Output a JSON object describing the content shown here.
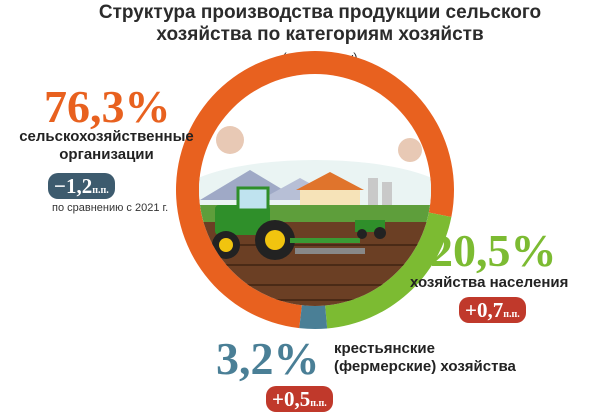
{
  "chart_data": {
    "type": "pie",
    "title": "Структура производства продукции сельского хозяйства по категориям хозяйств",
    "subtitle": "(в % к итогу)",
    "categories": [
      "сельскохозяйственные организации",
      "хозяйства населения",
      "крестьянские (фермерские) хозяйства"
    ],
    "values": [
      76.3,
      20.5,
      3.2
    ],
    "value_labels": [
      "76,3%",
      "20,5%",
      "3,2%"
    ],
    "changes": [
      {
        "sign": "−",
        "value": "1,2",
        "unit": "п.п."
      },
      {
        "sign": "+",
        "value": "0,7",
        "unit": "п.п."
      },
      {
        "sign": "+",
        "value": "0,5",
        "unit": "п.п."
      }
    ],
    "comparison_note": "по сравнению с 2021 г.",
    "colors": [
      "#e8611f",
      "#7cbb32",
      "#4a7f96"
    ],
    "badge_colors": {
      "negative": "#3d5b6e",
      "positive": "#c0392b"
    }
  }
}
